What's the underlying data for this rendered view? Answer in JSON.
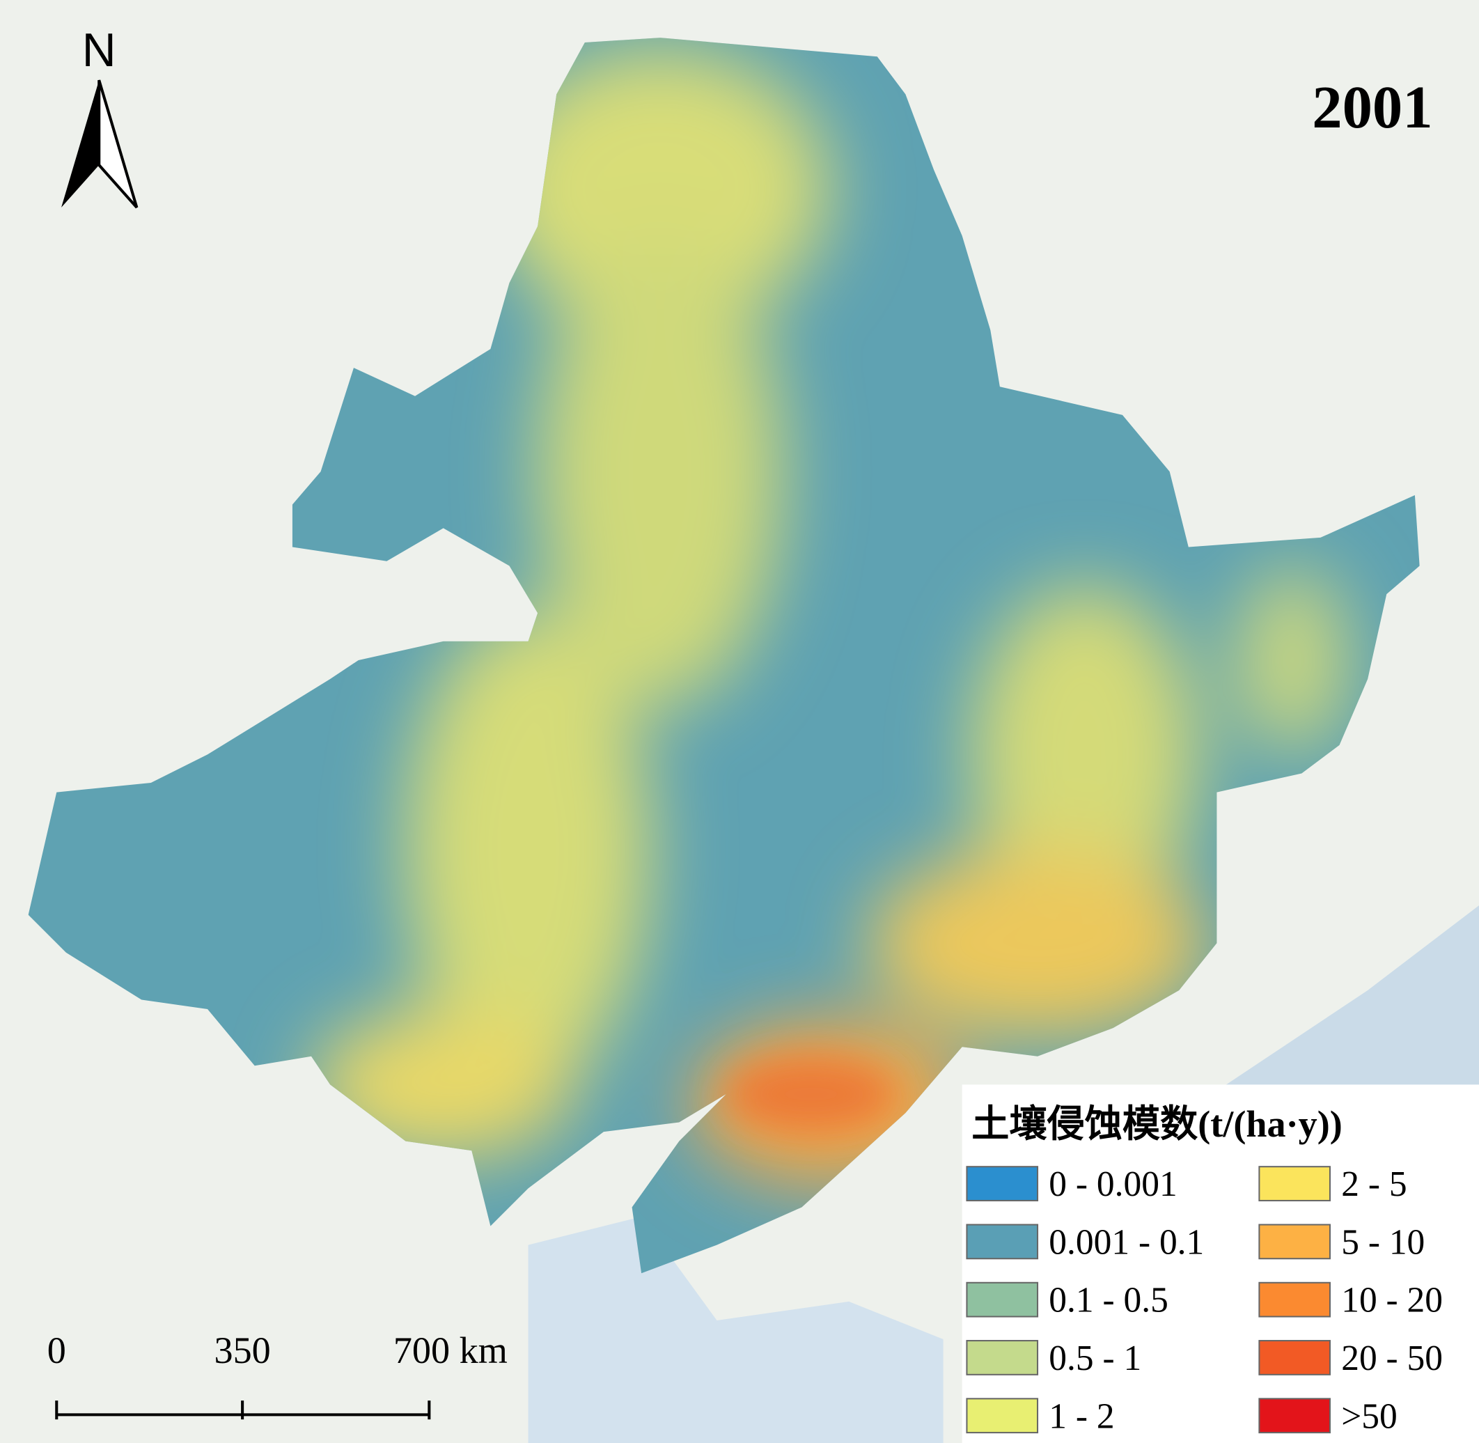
{
  "map": {
    "year": "2001",
    "north": "N",
    "legend": {
      "title": "土壤侵蚀模数(t/(ha·y))",
      "items": [
        {
          "label": "0 - 0.001",
          "color": "#2b8fcf"
        },
        {
          "label": "0.001 - 0.1",
          "color": "#5a9fb5"
        },
        {
          "label": "0.1 - 0.5",
          "color": "#8fc1a0"
        },
        {
          "label": "0.5 - 1",
          "color": "#c4da8c"
        },
        {
          "label": "1 - 2",
          "color": "#e8ef72"
        },
        {
          "label": "2 - 5",
          "color": "#fbe45c"
        },
        {
          "label": "5 - 10",
          "color": "#fdb144"
        },
        {
          "label": "10 - 20",
          "color": "#fb8a30"
        },
        {
          "label": "20 - 50",
          "color": "#f25a25"
        },
        {
          "label": ">50",
          "color": "#e3141a"
        }
      ]
    },
    "scale_bar": {
      "labels": [
        "0",
        "350",
        "700 km"
      ]
    }
  }
}
